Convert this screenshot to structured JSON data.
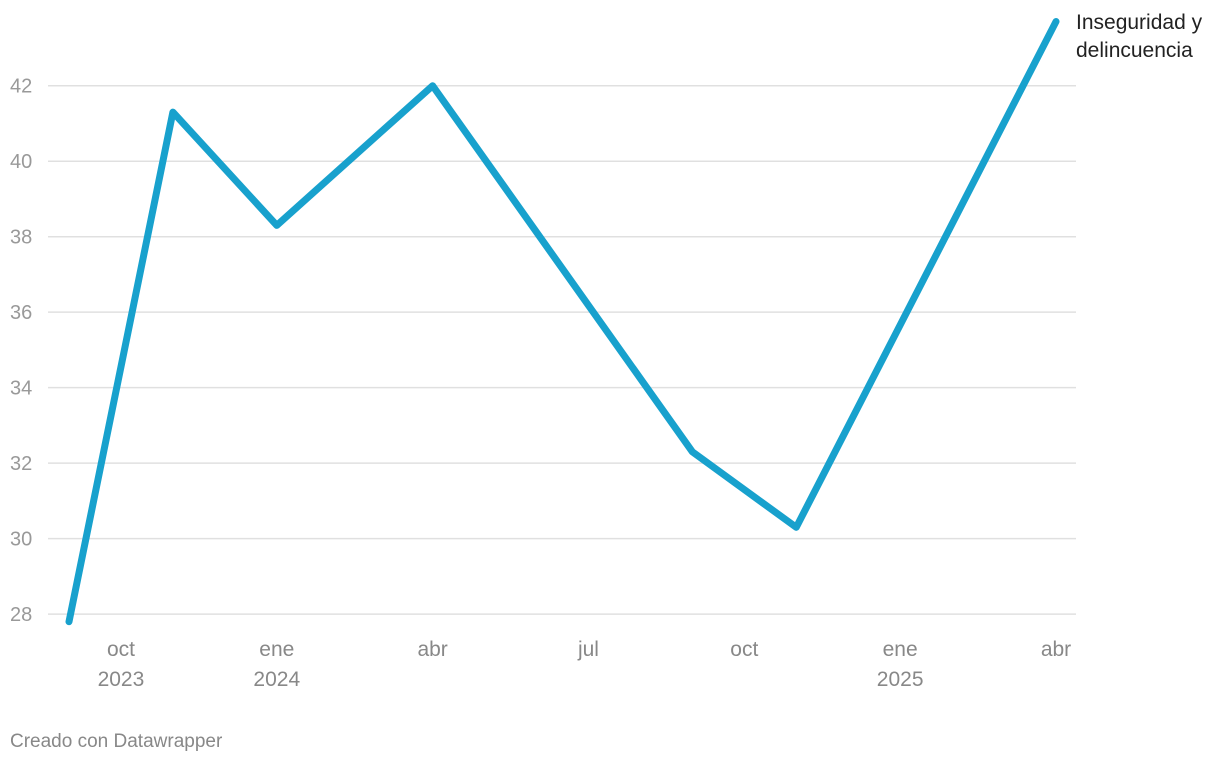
{
  "chart_data": {
    "type": "line",
    "x": [
      "2023-09",
      "2023-11",
      "2024-01",
      "2024-04",
      "2024-09",
      "2024-11",
      "2025-04"
    ],
    "series": [
      {
        "name": "Inseguridad y delincuencia",
        "color": "#18a1cd",
        "values": [
          27.8,
          41.3,
          38.3,
          42,
          32.3,
          30.3,
          43.7
        ]
      }
    ],
    "xlim": [
      "2023-09",
      "2025-04"
    ],
    "xticks": [
      {
        "value": "2023-10",
        "label": "oct",
        "sublabel": "2023"
      },
      {
        "value": "2024-01",
        "label": "ene",
        "sublabel": "2024"
      },
      {
        "value": "2024-04",
        "label": "abr"
      },
      {
        "value": "2024-07",
        "label": "jul"
      },
      {
        "value": "2024-10",
        "label": "oct"
      },
      {
        "value": "2025-01",
        "label": "ene",
        "sublabel": "2025"
      },
      {
        "value": "2025-04",
        "label": "abr"
      }
    ],
    "ylim": [
      27.5,
      43.9
    ],
    "yticks": [
      28,
      30,
      32,
      34,
      36,
      38,
      40,
      42
    ],
    "grid": true,
    "footer": "Creado con Datawrapper"
  }
}
